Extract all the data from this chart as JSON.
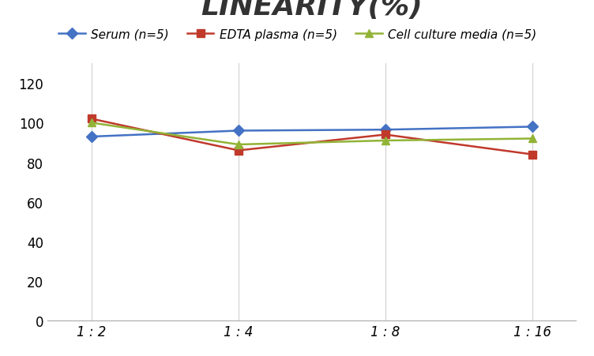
{
  "title": "LINEARITY(%)",
  "x_labels": [
    "1 : 2",
    "1 : 4",
    "1 : 8",
    "1 : 16"
  ],
  "x_positions": [
    0,
    1,
    2,
    3
  ],
  "series": [
    {
      "label": "Serum (n=5)",
      "values": [
        93,
        96,
        96.5,
        98
      ],
      "color": "#4472C4",
      "marker": "D",
      "linewidth": 1.8
    },
    {
      "label": "EDTA plasma (n=5)",
      "values": [
        102,
        86,
        94,
        84
      ],
      "color": "#C0392B",
      "marker": "s",
      "linewidth": 1.8
    },
    {
      "label": "Cell culture media (n=5)",
      "values": [
        100,
        89,
        91,
        92
      ],
      "color": "#92b336",
      "marker": "^",
      "linewidth": 1.8
    }
  ],
  "ylim": [
    0,
    130
  ],
  "yticks": [
    0,
    20,
    40,
    60,
    80,
    100,
    120
  ],
  "grid_color": "#d0d0d0",
  "background_color": "#ffffff",
  "title_fontsize": 26,
  "legend_fontsize": 11,
  "tick_fontsize": 12
}
